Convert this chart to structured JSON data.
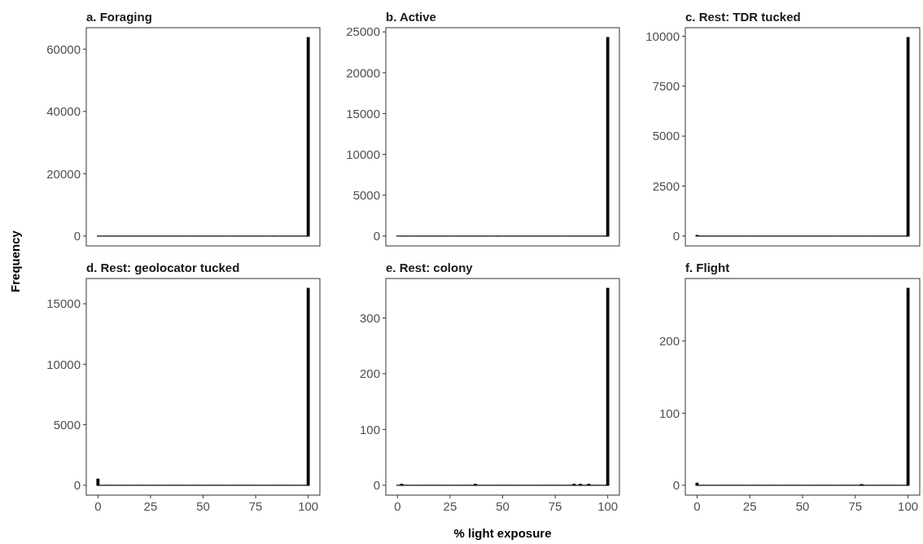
{
  "chart_data": [
    {
      "type": "histogram",
      "title": "a. Foraging",
      "ylabel": "Frequency",
      "color": "#000000",
      "tick_labels": "y",
      "xlim": [
        -5.55,
        105.55
      ],
      "ylim": [
        -3185,
        66885
      ],
      "yticks": [
        0,
        20000,
        40000,
        60000
      ],
      "bins": [
        -0.5,
        0.5,
        1.5,
        2.5,
        3.5,
        4.5,
        5.5,
        6.5,
        7.5,
        8.5,
        9.5,
        10.5,
        11.5,
        12.5,
        13.5,
        14.5,
        15.5,
        16.5,
        17.5,
        18.5,
        19.5,
        20.5,
        21.5,
        22.5,
        23.5,
        24.5,
        25.5,
        26.5,
        27.5,
        28.5,
        29.5,
        30.5,
        31.5,
        32.5,
        33.5,
        34.5,
        35.5,
        36.5,
        37.5,
        38.5,
        39.5,
        40.5,
        41.5,
        42.5,
        43.5,
        44.5,
        45.5,
        46.5,
        47.5,
        48.5,
        49.5,
        50.5,
        51.5,
        52.5,
        53.5,
        54.5,
        55.5,
        56.5,
        57.5,
        58.5,
        59.5,
        60.5,
        61.5,
        62.5,
        63.5,
        64.5,
        65.5,
        66.5,
        67.5,
        68.5,
        69.5,
        70.5,
        71.5,
        72.5,
        73.5,
        74.5,
        75.5,
        76.5,
        77.5,
        78.5,
        79.5,
        80.5,
        81.5,
        82.5,
        83.5,
        84.5,
        85.5,
        86.5,
        87.5,
        88.5,
        89.5,
        90.5,
        91.5,
        92.5,
        93.5,
        94.5,
        95.5,
        96.5,
        97.5,
        98.5,
        99.5,
        100.5
      ],
      "values": [
        0,
        0,
        0,
        0,
        0,
        0,
        0,
        0,
        0,
        0,
        0,
        0,
        0,
        0,
        0,
        0,
        0,
        0,
        0,
        0,
        0,
        0,
        0,
        0,
        0,
        0,
        0,
        0,
        0,
        0,
        0,
        0,
        0,
        0,
        0,
        0,
        0,
        0,
        0,
        0,
        0,
        0,
        0,
        0,
        0,
        0,
        0,
        0,
        0,
        0,
        0,
        0,
        0,
        0,
        0,
        0,
        0,
        0,
        0,
        0,
        0,
        0,
        0,
        0,
        0,
        0,
        0,
        0,
        0,
        0,
        0,
        0,
        0,
        0,
        0,
        0,
        0,
        0,
        0,
        0,
        0,
        0,
        0,
        0,
        0,
        0,
        0,
        0,
        0,
        0,
        0,
        0,
        0,
        0,
        0,
        0,
        0,
        0,
        0,
        0,
        63700
      ]
    },
    {
      "type": "histogram",
      "title": "b. Active",
      "color": "#000000",
      "tick_labels": "y",
      "xlim": [
        -5.55,
        105.55
      ],
      "ylim": [
        -1215,
        25515
      ],
      "yticks": [
        0,
        5000,
        10000,
        15000,
        20000,
        25000
      ],
      "bins": [
        -0.5,
        0.5,
        1.5,
        2.5,
        3.5,
        4.5,
        5.5,
        6.5,
        7.5,
        8.5,
        9.5,
        10.5,
        11.5,
        12.5,
        13.5,
        14.5,
        15.5,
        16.5,
        17.5,
        18.5,
        19.5,
        20.5,
        21.5,
        22.5,
        23.5,
        24.5,
        25.5,
        26.5,
        27.5,
        28.5,
        29.5,
        30.5,
        31.5,
        32.5,
        33.5,
        34.5,
        35.5,
        36.5,
        37.5,
        38.5,
        39.5,
        40.5,
        41.5,
        42.5,
        43.5,
        44.5,
        45.5,
        46.5,
        47.5,
        48.5,
        49.5,
        50.5,
        51.5,
        52.5,
        53.5,
        54.5,
        55.5,
        56.5,
        57.5,
        58.5,
        59.5,
        60.5,
        61.5,
        62.5,
        63.5,
        64.5,
        65.5,
        66.5,
        67.5,
        68.5,
        69.5,
        70.5,
        71.5,
        72.5,
        73.5,
        74.5,
        75.5,
        76.5,
        77.5,
        78.5,
        79.5,
        80.5,
        81.5,
        82.5,
        83.5,
        84.5,
        85.5,
        86.5,
        87.5,
        88.5,
        89.5,
        90.5,
        91.5,
        92.5,
        93.5,
        94.5,
        95.5,
        96.5,
        97.5,
        98.5,
        99.5,
        100.5
      ],
      "values": [
        0,
        0,
        0,
        0,
        0,
        0,
        0,
        0,
        0,
        0,
        0,
        0,
        0,
        0,
        0,
        0,
        0,
        0,
        0,
        0,
        0,
        0,
        0,
        0,
        0,
        0,
        0,
        0,
        0,
        0,
        0,
        0,
        0,
        0,
        0,
        0,
        0,
        0,
        0,
        0,
        0,
        0,
        0,
        0,
        0,
        0,
        0,
        0,
        0,
        0,
        0,
        0,
        0,
        0,
        0,
        0,
        0,
        0,
        0,
        0,
        0,
        0,
        0,
        0,
        0,
        0,
        0,
        0,
        0,
        0,
        0,
        0,
        0,
        0,
        0,
        0,
        0,
        0,
        0,
        0,
        0,
        0,
        0,
        0,
        0,
        0,
        0,
        0,
        0,
        0,
        0,
        0,
        0,
        0,
        0,
        0,
        0,
        0,
        0,
        0,
        24300
      ]
    },
    {
      "type": "histogram",
      "title": "c. Rest: TDR tucked",
      "color": "#000000",
      "tick_labels": "y",
      "xlim": [
        -5.55,
        105.55
      ],
      "ylim": [
        -497,
        10427
      ],
      "yticks": [
        0,
        2500,
        5000,
        7500,
        10000
      ],
      "bins": [
        -0.5,
        0.5,
        1.5,
        2.5,
        3.5,
        4.5,
        5.5,
        6.5,
        7.5,
        8.5,
        9.5,
        10.5,
        11.5,
        12.5,
        13.5,
        14.5,
        15.5,
        16.5,
        17.5,
        18.5,
        19.5,
        20.5,
        21.5,
        22.5,
        23.5,
        24.5,
        25.5,
        26.5,
        27.5,
        28.5,
        29.5,
        30.5,
        31.5,
        32.5,
        33.5,
        34.5,
        35.5,
        36.5,
        37.5,
        38.5,
        39.5,
        40.5,
        41.5,
        42.5,
        43.5,
        44.5,
        45.5,
        46.5,
        47.5,
        48.5,
        49.5,
        50.5,
        51.5,
        52.5,
        53.5,
        54.5,
        55.5,
        56.5,
        57.5,
        58.5,
        59.5,
        60.5,
        61.5,
        62.5,
        63.5,
        64.5,
        65.5,
        66.5,
        67.5,
        68.5,
        69.5,
        70.5,
        71.5,
        72.5,
        73.5,
        74.5,
        75.5,
        76.5,
        77.5,
        78.5,
        79.5,
        80.5,
        81.5,
        82.5,
        83.5,
        84.5,
        85.5,
        86.5,
        87.5,
        88.5,
        89.5,
        90.5,
        91.5,
        92.5,
        93.5,
        94.5,
        95.5,
        96.5,
        97.5,
        98.5,
        99.5,
        100.5
      ],
      "values": [
        30,
        0,
        0,
        0,
        0,
        0,
        0,
        0,
        0,
        0,
        0,
        0,
        0,
        0,
        0,
        0,
        0,
        0,
        0,
        0,
        0,
        0,
        0,
        0,
        0,
        0,
        0,
        0,
        0,
        0,
        0,
        0,
        0,
        0,
        0,
        0,
        0,
        0,
        0,
        0,
        0,
        0,
        0,
        0,
        0,
        0,
        0,
        0,
        0,
        0,
        0,
        0,
        0,
        0,
        0,
        0,
        0,
        0,
        0,
        0,
        0,
        0,
        0,
        0,
        0,
        0,
        0,
        0,
        0,
        0,
        0,
        0,
        0,
        0,
        0,
        0,
        0,
        0,
        0,
        0,
        0,
        0,
        0,
        0,
        0,
        0,
        0,
        0,
        0,
        0,
        0,
        0,
        0,
        0,
        0,
        0,
        0,
        0,
        0,
        0,
        9930
      ]
    },
    {
      "type": "histogram",
      "title": "d. Rest: geolocator tucked",
      "color": "#000000",
      "xlim": [
        -5.55,
        105.55
      ],
      "xticks": [
        0,
        25,
        50,
        75,
        100
      ],
      "ylim": [
        -814,
        17084
      ],
      "yticks": [
        0,
        5000,
        10000,
        15000
      ],
      "bins": [
        -0.5,
        0.5,
        1.5,
        2.5,
        3.5,
        4.5,
        5.5,
        6.5,
        7.5,
        8.5,
        9.5,
        10.5,
        11.5,
        12.5,
        13.5,
        14.5,
        15.5,
        16.5,
        17.5,
        18.5,
        19.5,
        20.5,
        21.5,
        22.5,
        23.5,
        24.5,
        25.5,
        26.5,
        27.5,
        28.5,
        29.5,
        30.5,
        31.5,
        32.5,
        33.5,
        34.5,
        35.5,
        36.5,
        37.5,
        38.5,
        39.5,
        40.5,
        41.5,
        42.5,
        43.5,
        44.5,
        45.5,
        46.5,
        47.5,
        48.5,
        49.5,
        50.5,
        51.5,
        52.5,
        53.5,
        54.5,
        55.5,
        56.5,
        57.5,
        58.5,
        59.5,
        60.5,
        61.5,
        62.5,
        63.5,
        64.5,
        65.5,
        66.5,
        67.5,
        68.5,
        69.5,
        70.5,
        71.5,
        72.5,
        73.5,
        74.5,
        75.5,
        76.5,
        77.5,
        78.5,
        79.5,
        80.5,
        81.5,
        82.5,
        83.5,
        84.5,
        85.5,
        86.5,
        87.5,
        88.5,
        89.5,
        90.5,
        91.5,
        92.5,
        93.5,
        94.5,
        95.5,
        96.5,
        97.5,
        98.5,
        99.5,
        100.5
      ],
      "values": [
        500,
        0,
        0,
        0,
        0,
        0,
        0,
        0,
        0,
        0,
        0,
        0,
        0,
        0,
        0,
        0,
        0,
        0,
        0,
        0,
        0,
        0,
        0,
        0,
        0,
        0,
        0,
        0,
        0,
        0,
        0,
        0,
        0,
        0,
        0,
        0,
        0,
        0,
        0,
        0,
        0,
        0,
        0,
        0,
        0,
        0,
        0,
        0,
        0,
        0,
        0,
        0,
        0,
        0,
        0,
        0,
        0,
        0,
        0,
        0,
        0,
        0,
        0,
        0,
        0,
        0,
        0,
        0,
        0,
        0,
        0,
        0,
        0,
        0,
        0,
        0,
        0,
        0,
        0,
        0,
        0,
        0,
        0,
        0,
        0,
        0,
        0,
        0,
        0,
        0,
        0,
        0,
        0,
        0,
        0,
        0,
        0,
        0,
        0,
        0,
        16270
      ]
    },
    {
      "type": "histogram",
      "title": "e. Rest: colony",
      "xlabel": "% light exposure",
      "color": "#000000",
      "xlim": [
        -5.55,
        105.55
      ],
      "xticks": [
        0,
        25,
        50,
        75,
        100
      ],
      "ylim": [
        -17.7,
        370.7
      ],
      "yticks": [
        0,
        100,
        200,
        300
      ],
      "bins": [
        -0.5,
        0.5,
        1.5,
        2.5,
        3.5,
        4.5,
        5.5,
        6.5,
        7.5,
        8.5,
        9.5,
        10.5,
        11.5,
        12.5,
        13.5,
        14.5,
        15.5,
        16.5,
        17.5,
        18.5,
        19.5,
        20.5,
        21.5,
        22.5,
        23.5,
        24.5,
        25.5,
        26.5,
        27.5,
        28.5,
        29.5,
        30.5,
        31.5,
        32.5,
        33.5,
        34.5,
        35.5,
        36.5,
        37.5,
        38.5,
        39.5,
        40.5,
        41.5,
        42.5,
        43.5,
        44.5,
        45.5,
        46.5,
        47.5,
        48.5,
        49.5,
        50.5,
        51.5,
        52.5,
        53.5,
        54.5,
        55.5,
        56.5,
        57.5,
        58.5,
        59.5,
        60.5,
        61.5,
        62.5,
        63.5,
        64.5,
        65.5,
        66.5,
        67.5,
        68.5,
        69.5,
        70.5,
        71.5,
        72.5,
        73.5,
        74.5,
        75.5,
        76.5,
        77.5,
        78.5,
        79.5,
        80.5,
        81.5,
        82.5,
        83.5,
        84.5,
        85.5,
        86.5,
        87.5,
        88.5,
        89.5,
        90.5,
        91.5,
        92.5,
        93.5,
        94.5,
        95.5,
        96.5,
        97.5,
        98.5,
        99.5,
        100.5
      ],
      "values": [
        0,
        0,
        2,
        0,
        0,
        0,
        0,
        0,
        0,
        0,
        0,
        0,
        0,
        0,
        0,
        0,
        0,
        0,
        0,
        0,
        0,
        0,
        0,
        0,
        0,
        0,
        0,
        0,
        0,
        0,
        0,
        0,
        0,
        0,
        0,
        0,
        0,
        2,
        0,
        0,
        0,
        0,
        0,
        0,
        0,
        0,
        0,
        0,
        0,
        0,
        0,
        0,
        0,
        0,
        0,
        0,
        0,
        0,
        0,
        0,
        0,
        0,
        0,
        0,
        0,
        0,
        0,
        0,
        0,
        0,
        0,
        0,
        0,
        0,
        0,
        0,
        0,
        0,
        0,
        0,
        0,
        0,
        0,
        0,
        2,
        0,
        0,
        2,
        0,
        0,
        0,
        2,
        0,
        0,
        0,
        0,
        0,
        0,
        0,
        0,
        353
      ]
    },
    {
      "type": "histogram",
      "title": "f. Flight",
      "color": "#000000",
      "xlim": [
        -5.55,
        105.55
      ],
      "xticks": [
        0,
        25,
        50,
        75,
        100
      ],
      "ylim": [
        -13.65,
        286.65
      ],
      "yticks": [
        0,
        100,
        200
      ],
      "bins": [
        -0.5,
        0.5,
        1.5,
        2.5,
        3.5,
        4.5,
        5.5,
        6.5,
        7.5,
        8.5,
        9.5,
        10.5,
        11.5,
        12.5,
        13.5,
        14.5,
        15.5,
        16.5,
        17.5,
        18.5,
        19.5,
        20.5,
        21.5,
        22.5,
        23.5,
        24.5,
        25.5,
        26.5,
        27.5,
        28.5,
        29.5,
        30.5,
        31.5,
        32.5,
        33.5,
        34.5,
        35.5,
        36.5,
        37.5,
        38.5,
        39.5,
        40.5,
        41.5,
        42.5,
        43.5,
        44.5,
        45.5,
        46.5,
        47.5,
        48.5,
        49.5,
        50.5,
        51.5,
        52.5,
        53.5,
        54.5,
        55.5,
        56.5,
        57.5,
        58.5,
        59.5,
        60.5,
        61.5,
        62.5,
        63.5,
        64.5,
        65.5,
        66.5,
        67.5,
        68.5,
        69.5,
        70.5,
        71.5,
        72.5,
        73.5,
        74.5,
        75.5,
        76.5,
        77.5,
        78.5,
        79.5,
        80.5,
        81.5,
        82.5,
        83.5,
        84.5,
        85.5,
        86.5,
        87.5,
        88.5,
        89.5,
        90.5,
        91.5,
        92.5,
        93.5,
        94.5,
        95.5,
        96.5,
        97.5,
        98.5,
        99.5,
        100.5
      ],
      "values": [
        3,
        0,
        0,
        0,
        0,
        0,
        0,
        0,
        0,
        0,
        0,
        0,
        0,
        0,
        0,
        0,
        0,
        0,
        0,
        0,
        0,
        0,
        0,
        0,
        0,
        0,
        0,
        0,
        0,
        0,
        0,
        0,
        0,
        0,
        0,
        0,
        0,
        0,
        0,
        0,
        0,
        0,
        0,
        0,
        0,
        0,
        0,
        0,
        0,
        0,
        0,
        0,
        0,
        0,
        0,
        0,
        0,
        0,
        0,
        0,
        0,
        0,
        0,
        0,
        0,
        0,
        0,
        0,
        0,
        0,
        0,
        0,
        0,
        0,
        0,
        0,
        0,
        0,
        1,
        0,
        0,
        0,
        0,
        0,
        0,
        0,
        0,
        0,
        0,
        0,
        0,
        0,
        0,
        0,
        0,
        0,
        0,
        0,
        0,
        0,
        273
      ]
    }
  ]
}
